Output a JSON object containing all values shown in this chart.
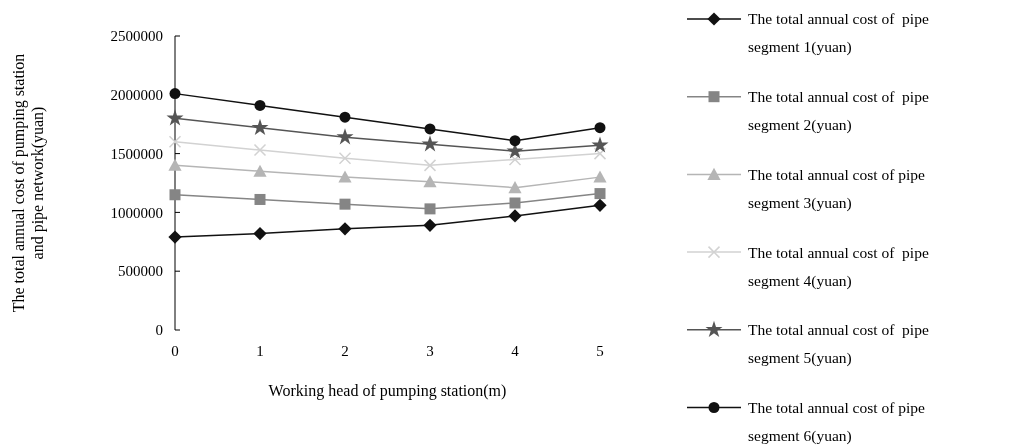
{
  "chart_data": {
    "type": "line",
    "xlabel": "Working head of pumping station(m)",
    "ylabel": "The total annual cost of pumping station and pipe network(yuan)",
    "categories": [
      "0",
      "1",
      "2",
      "3",
      "4",
      "5"
    ],
    "ylim": [
      0,
      2500000
    ],
    "yticks": [
      0,
      500000,
      1000000,
      1500000,
      2000000,
      2500000
    ],
    "grid": false,
    "legend": "right",
    "series": [
      {
        "name": "The total annual cost of  pipe segment 1(yuan)",
        "color": "#111111",
        "marker": "diamond",
        "values": [
          790000,
          820000,
          860000,
          890000,
          970000,
          1060000
        ]
      },
      {
        "name": "The total annual cost of  pipe segment 2(yuan)",
        "color": "#858585",
        "marker": "square",
        "values": [
          1150000,
          1110000,
          1070000,
          1030000,
          1080000,
          1160000
        ]
      },
      {
        "name": "The total annual cost of pipe segment 3(yuan)",
        "color": "#b5b5b5",
        "marker": "triangle",
        "values": [
          1400000,
          1350000,
          1300000,
          1260000,
          1210000,
          1300000
        ]
      },
      {
        "name": "The total annual cost of  pipe segment 4(yuan)",
        "color": "#d2d2d2",
        "marker": "cross",
        "values": [
          1600000,
          1530000,
          1460000,
          1400000,
          1450000,
          1500000
        ]
      },
      {
        "name": "The total annual cost of  pipe segment 5(yuan)",
        "color": "#555555",
        "marker": "star",
        "values": [
          1800000,
          1720000,
          1640000,
          1580000,
          1520000,
          1570000
        ]
      },
      {
        "name": "The total annual cost of pipe segment 6(yuan)",
        "color": "#111111",
        "marker": "circle",
        "values": [
          2010000,
          1910000,
          1810000,
          1710000,
          1610000,
          1720000
        ]
      }
    ]
  }
}
